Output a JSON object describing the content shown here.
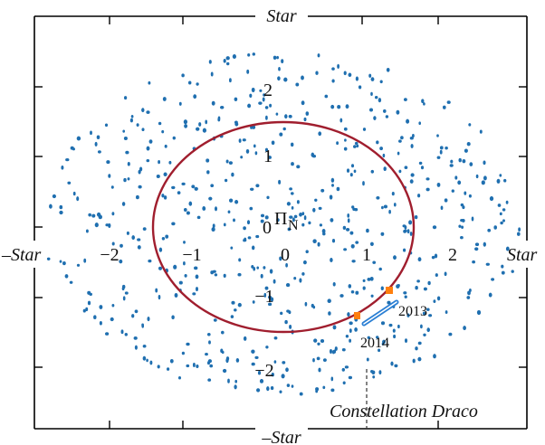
{
  "labels": {
    "star_top": "Star",
    "star_bottom": "–Star",
    "star_left": "–Star",
    "star_right": "Star",
    "pole_zero": "0",
    "pole": "Π",
    "pole_subscript": "N",
    "constellation": "Constellation Draco",
    "year_a": "2013",
    "year_b": "2014"
  },
  "x_ticks": [
    "−2",
    "−1",
    "0",
    "1",
    "2"
  ],
  "y_ticks": [
    "2",
    "1",
    "−1",
    "−2"
  ],
  "colors": {
    "dots": "#1f6fb0",
    "circle": "#a01e2e",
    "marker": "#ff7f0e",
    "track": "#2a7fd4",
    "frame": "#000000"
  },
  "scatter_dot_count": 620
}
